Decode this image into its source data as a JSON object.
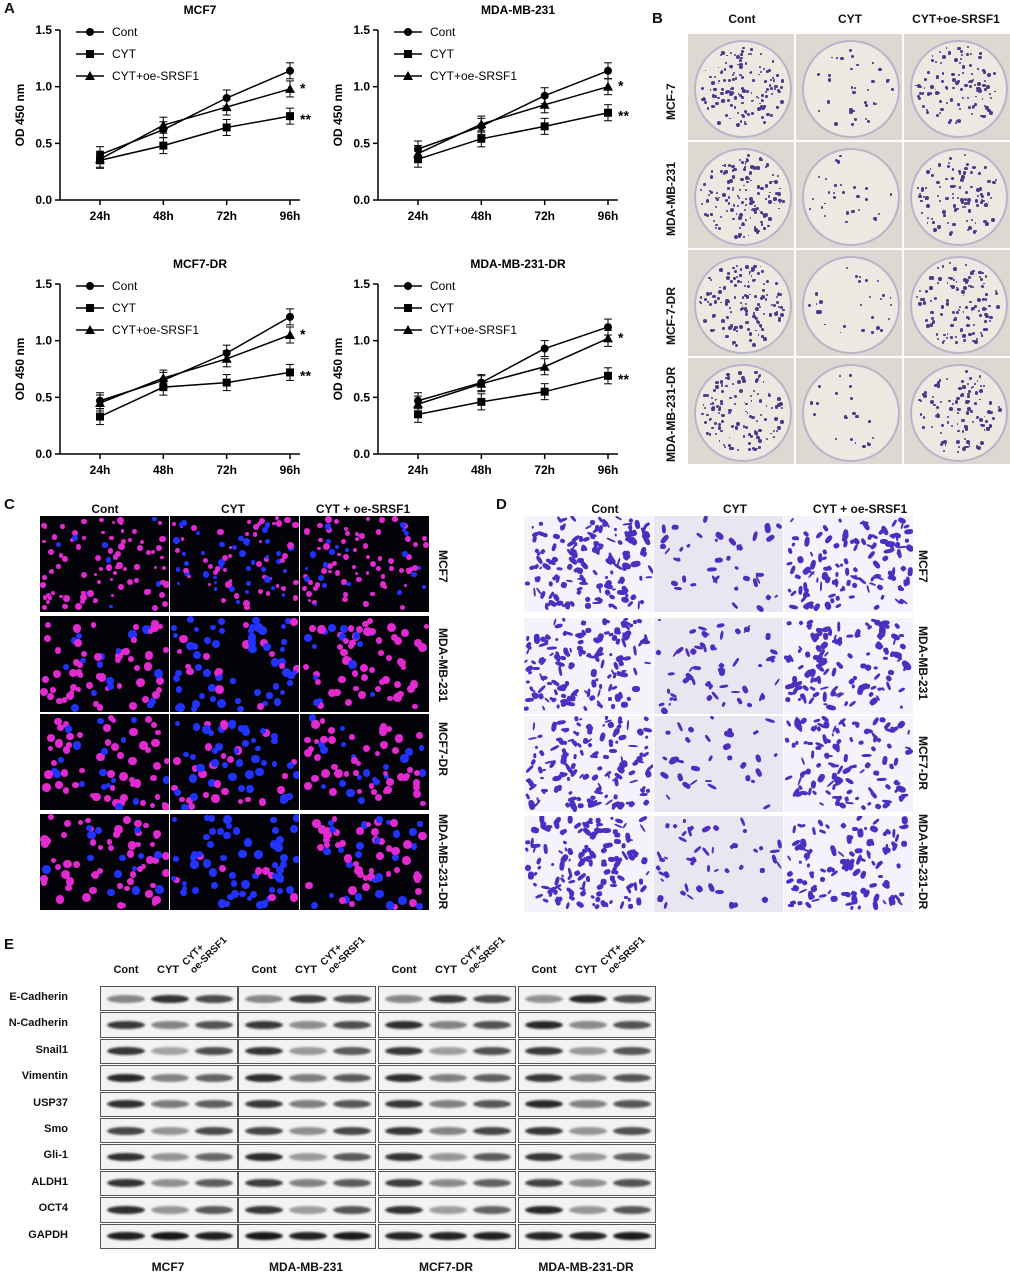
{
  "panels": {
    "A": "A",
    "B": "B",
    "C": "C",
    "D": "D",
    "E": "E"
  },
  "chart_data": [
    {
      "type": "line",
      "title": "MCF7",
      "ylabel": "OD 450 nm",
      "xlabel": "",
      "categories": [
        "24h",
        "48h",
        "72h",
        "96h"
      ],
      "ylim": [
        0,
        1.5
      ],
      "yticks": [
        "0.0",
        "0.5",
        "1.0",
        "1.5"
      ],
      "series": [
        {
          "name": "Cont",
          "marker": "circle",
          "values": [
            0.4,
            0.62,
            0.9,
            1.14
          ]
        },
        {
          "name": "CYT",
          "marker": "square",
          "values": [
            0.35,
            0.48,
            0.64,
            0.74
          ]
        },
        {
          "name": "CYT+oe-SRSF1",
          "marker": "triangle",
          "values": [
            0.36,
            0.66,
            0.82,
            0.98
          ]
        }
      ],
      "annotations": [
        "*",
        "**"
      ],
      "legend": "top-left"
    },
    {
      "type": "line",
      "title": "MDA-MB-231",
      "ylabel": "OD 450 nm",
      "xlabel": "",
      "categories": [
        "24h",
        "48h",
        "72h",
        "96h"
      ],
      "ylim": [
        0,
        1.5
      ],
      "yticks": [
        "0.0",
        "0.5",
        "1.0",
        "1.5"
      ],
      "series": [
        {
          "name": "Cont",
          "marker": "circle",
          "values": [
            0.45,
            0.65,
            0.92,
            1.14
          ]
        },
        {
          "name": "CYT",
          "marker": "square",
          "values": [
            0.36,
            0.54,
            0.65,
            0.77
          ]
        },
        {
          "name": "CYT+oe-SRSF1",
          "marker": "triangle",
          "values": [
            0.41,
            0.67,
            0.84,
            1.0
          ]
        }
      ],
      "annotations": [
        "*",
        "**"
      ],
      "legend": "top-left"
    },
    {
      "type": "line",
      "title": "MCF7-DR",
      "ylabel": "OD 450 nm",
      "xlabel": "",
      "categories": [
        "24h",
        "48h",
        "72h",
        "96h"
      ],
      "ylim": [
        0,
        1.5
      ],
      "yticks": [
        "0.0",
        "0.5",
        "1.0",
        "1.5"
      ],
      "series": [
        {
          "name": "Cont",
          "marker": "circle",
          "values": [
            0.47,
            0.65,
            0.89,
            1.21
          ]
        },
        {
          "name": "CYT",
          "marker": "square",
          "values": [
            0.33,
            0.59,
            0.63,
            0.72
          ]
        },
        {
          "name": "CYT+oe-SRSF1",
          "marker": "triangle",
          "values": [
            0.45,
            0.67,
            0.84,
            1.05
          ]
        }
      ],
      "annotations": [
        "*",
        "**"
      ],
      "legend": "top-left"
    },
    {
      "type": "line",
      "title": "MDA-MB-231-DR",
      "ylabel": "OD 450 nm",
      "xlabel": "",
      "categories": [
        "24h",
        "48h",
        "72h",
        "96h"
      ],
      "ylim": [
        0,
        1.5
      ],
      "yticks": [
        "0.0",
        "0.5",
        "1.0",
        "1.5"
      ],
      "series": [
        {
          "name": "Cont",
          "marker": "circle",
          "values": [
            0.47,
            0.63,
            0.93,
            1.12
          ]
        },
        {
          "name": "CYT",
          "marker": "square",
          "values": [
            0.35,
            0.46,
            0.55,
            0.69
          ]
        },
        {
          "name": "CYT+oe-SRSF1",
          "marker": "triangle",
          "values": [
            0.44,
            0.62,
            0.77,
            1.02
          ]
        }
      ],
      "annotations": [
        "*",
        "**"
      ],
      "legend": "top-left"
    }
  ],
  "panelB": {
    "cols": [
      "Cont",
      "CYT",
      "CYT+oe-SRSF1"
    ],
    "rows": [
      "MCF-7",
      "MDA-MB-231",
      "MCF-7-DR",
      "MDA-MB-231-DR"
    ]
  },
  "panelC": {
    "cols": [
      "Cont",
      "CYT",
      "CYT + oe-SRSF1"
    ],
    "rows": [
      "MCF7",
      "MDA-MB-231",
      "MCF7-DR",
      "MDA-MB-231-DR"
    ]
  },
  "panelD": {
    "cols": [
      "Cont",
      "CYT",
      "CYT + oe-SRSF1"
    ],
    "rows": [
      "MCF7",
      "MDA-MB-231",
      "MCF7-DR",
      "MDA-MB-231-DR"
    ]
  },
  "panelE": {
    "lanes": [
      "Cont",
      "CYT",
      "CYT+\noe-SRSF1"
    ],
    "proteins": [
      "E-Cadherin",
      "N-Cadherin",
      "Snail1",
      "Vimentin",
      "USP37",
      "Smo",
      "Gli-1",
      "ALDH1",
      "OCT4",
      "GAPDH"
    ],
    "cells": [
      "MCF7",
      "MDA-MB-231",
      "MCF7-DR",
      "MDA-MB-231-DR"
    ]
  },
  "colors": {
    "cont": "#000000",
    "stain_purple": "#5b3fb0",
    "dapi_blue": "#1e2cff",
    "edu_magenta": "#ff2bd6"
  }
}
